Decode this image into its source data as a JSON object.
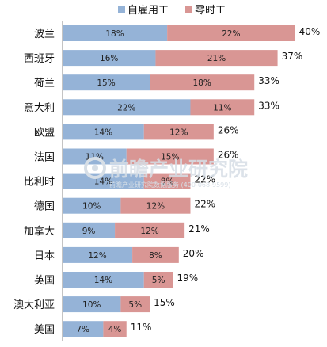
{
  "chart_data": {
    "type": "bar",
    "orientation": "horizontal",
    "stacked": true,
    "categories": [
      "波兰",
      "西班牙",
      "荷兰",
      "意大利",
      "欧盟",
      "法国",
      "比利时",
      "德国",
      "加拿大",
      "日本",
      "英国",
      "澳大利亚",
      "美国"
    ],
    "series": [
      {
        "name": "自雇用工",
        "values": [
          18,
          16,
          15,
          22,
          14,
          11,
          14,
          10,
          9,
          12,
          14,
          10,
          7
        ],
        "color": "#95b3d7"
      },
      {
        "name": "零时工",
        "values": [
          22,
          21,
          18,
          11,
          12,
          15,
          8,
          12,
          12,
          8,
          5,
          5,
          4
        ],
        "color": "#d99694"
      }
    ],
    "totals": [
      "40%",
      "37%",
      "33%",
      "33%",
      "26%",
      "26%",
      "22%",
      "22%",
      "21%",
      "20%",
      "19%",
      "15%",
      "11%"
    ],
    "value_suffix": "%",
    "xlim": [
      0,
      40
    ],
    "grid": false,
    "legend_position": "top"
  },
  "watermark": {
    "name": "前瞻产业研究院",
    "subtext": "前瞻产业研究院数据服务 (400-068-9599)"
  }
}
